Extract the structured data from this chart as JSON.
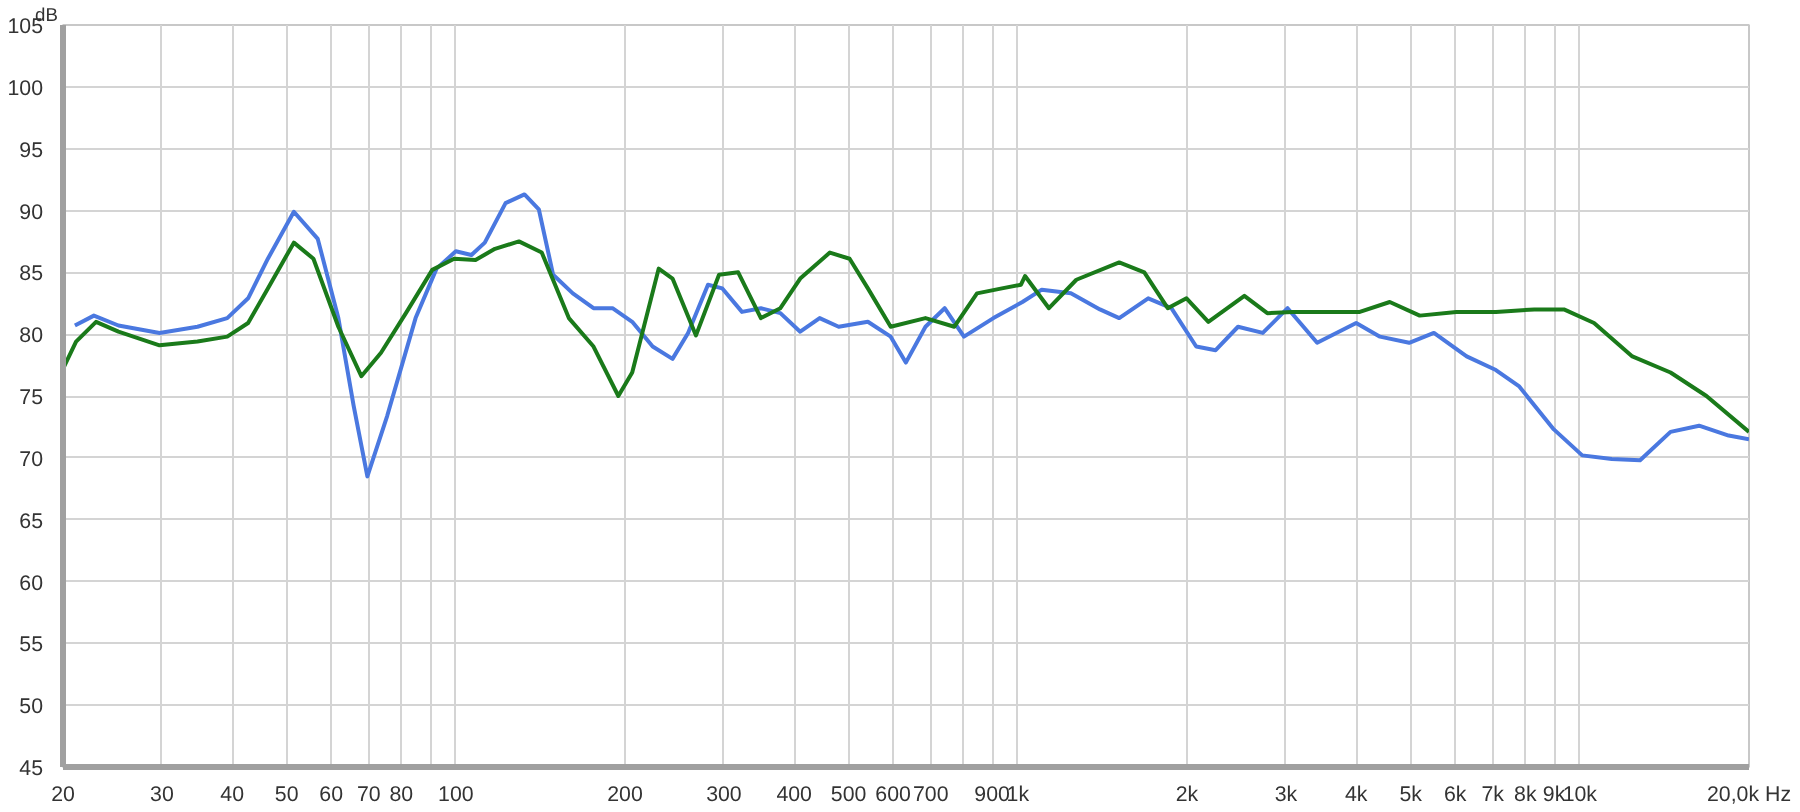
{
  "chart_data": {
    "type": "line",
    "ylabel": "dB",
    "log": "x",
    "grid": true,
    "line_style": "solid",
    "xlim": [
      20,
      20000
    ],
    "ylim": [
      45,
      105
    ],
    "xticks": [
      20,
      30,
      40,
      50,
      60,
      70,
      80,
      {
        "value": 90,
        "label": null
      },
      100,
      200,
      300,
      400,
      500,
      600,
      700,
      {
        "value": 800,
        "label": null
      },
      900,
      {
        "value": 1000,
        "label": "1k"
      },
      {
        "value": 2000,
        "label": "2k"
      },
      {
        "value": 3000,
        "label": "3k"
      },
      {
        "value": 4000,
        "label": "4k"
      },
      {
        "value": 5000,
        "label": "5k"
      },
      {
        "value": 6000,
        "label": "6k"
      },
      {
        "value": 7000,
        "label": "7k"
      },
      {
        "value": 8000,
        "label": "8k"
      },
      {
        "value": 9000,
        "label": "9k"
      },
      {
        "value": 10000,
        "label": "10k"
      },
      {
        "value": 20000,
        "label": "20,0k Hz"
      }
    ],
    "yticks": [
      45,
      50,
      55,
      60,
      65,
      70,
      75,
      80,
      85,
      90,
      95,
      100,
      105
    ],
    "series": [
      {
        "color": "#4a78e0",
        "x": [
          21,
          22.7,
          25.1,
          29.7,
          34.7,
          39.2,
          42.7,
          46.3,
          51.5,
          56.8,
          61.8,
          65.8,
          69.6,
          75.5,
          84.8,
          92.4,
          100,
          106.6,
          112.6,
          122.6,
          132.5,
          140.5,
          149,
          161.5,
          175.8,
          190,
          206,
          224,
          243,
          259,
          281,
          298,
          323,
          349,
          378,
          410,
          444,
          480,
          541,
          594,
          632,
          685,
          741,
          802,
          905,
          1019,
          1103,
          1243,
          1400,
          1515,
          1706,
          1876,
          2077,
          2249,
          2465,
          2728,
          3020,
          3409,
          4000,
          4410,
          4970,
          5500,
          6290,
          7090,
          7790,
          8990,
          10100,
          11400,
          12800,
          14500,
          16300,
          18400,
          20000
        ],
        "values": [
          80.7,
          81.5,
          80.7,
          80.1,
          80.6,
          81.3,
          82.9,
          86.1,
          89.9,
          87.7,
          81.3,
          74.2,
          68.5,
          73.4,
          81.3,
          85.3,
          86.7,
          86.4,
          87.4,
          90.6,
          91.3,
          90.1,
          84.8,
          83.3,
          82.1,
          82.1,
          81.0,
          79.0,
          78.0,
          80.1,
          84.0,
          83.7,
          81.8,
          82.1,
          81.7,
          80.2,
          81.3,
          80.6,
          81.0,
          79.8,
          77.7,
          80.6,
          82.1,
          79.8,
          81.3,
          82.6,
          83.6,
          83.3,
          82.0,
          81.3,
          82.9,
          82.1,
          79.0,
          78.7,
          80.6,
          80.1,
          82.1,
          79.3,
          80.9,
          79.8,
          79.3,
          80.1,
          78.2,
          77.1,
          75.8,
          72.3,
          70.2,
          69.9,
          69.8,
          72.1,
          72.6,
          71.8,
          71.5
        ]
      },
      {
        "color": "#1a7a1a",
        "x": [
          20,
          21.1,
          22.9,
          25.1,
          29.7,
          34.7,
          39.2,
          42.7,
          46.3,
          51.5,
          55.8,
          61.8,
          67.9,
          73.6,
          81.5,
          90.8,
          99.3,
          108.4,
          117.4,
          129.5,
          142.2,
          158.9,
          175.8,
          194.6,
          206,
          229.6,
          243,
          267.5,
          294,
          318,
          349,
          378,
          410,
          463,
          502,
          541,
          594,
          685,
          771,
          846,
          937,
          1013,
          1030,
          1136,
          1271,
          1515,
          1679,
          1848,
          1996,
          2183,
          2530,
          2779,
          3080,
          4060,
          4590,
          5190,
          6030,
          7090,
          8300,
          9370,
          10600,
          12400,
          14500,
          16800,
          20000
        ],
        "values": [
          77.2,
          79.4,
          81.0,
          80.2,
          79.1,
          79.4,
          79.8,
          80.9,
          83.7,
          87.4,
          86.1,
          80.6,
          76.6,
          78.5,
          81.7,
          85.2,
          86.1,
          86.0,
          86.9,
          87.5,
          86.6,
          81.3,
          79.0,
          75.0,
          76.9,
          85.3,
          84.5,
          79.9,
          84.8,
          85.0,
          81.3,
          82.1,
          84.5,
          86.6,
          86.1,
          83.7,
          80.6,
          81.3,
          80.6,
          83.3,
          83.7,
          84.0,
          84.7,
          82.1,
          84.4,
          85.8,
          85.0,
          82.1,
          82.9,
          81.0,
          83.1,
          81.7,
          81.8,
          81.8,
          82.6,
          81.5,
          81.8,
          81.8,
          82.0,
          82.0,
          80.9,
          78.2,
          76.9,
          75.0,
          72.1
        ]
      }
    ]
  }
}
